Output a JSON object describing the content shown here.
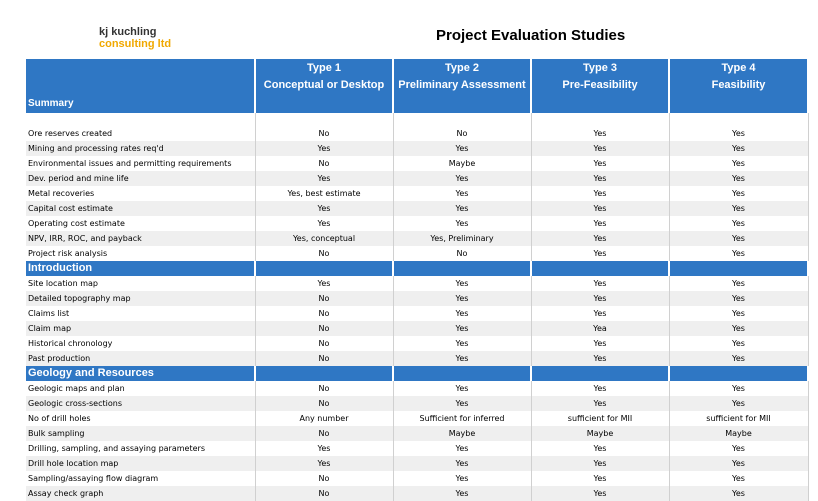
{
  "logo": {
    "line1": "kj kuchling",
    "line2": "consulting ltd"
  },
  "title": "Project Evaluation Studies",
  "header": {
    "summary_label": "Summary",
    "columns": [
      {
        "type": "Type 1",
        "name": "Conceptual or Desktop"
      },
      {
        "type": "Type 2",
        "name": "Preliminary Assessment"
      },
      {
        "type": "Type 3",
        "name": "Pre-Feasibility"
      },
      {
        "type": "Type 4",
        "name": "Feasibility"
      }
    ]
  },
  "summary_rows": [
    {
      "label": "Ore reserves created",
      "values": [
        "No",
        "No",
        "Yes",
        "Yes"
      ]
    },
    {
      "label": "Mining and processing rates req'd",
      "values": [
        "Yes",
        "Yes",
        "Yes",
        "Yes"
      ]
    },
    {
      "label": "Environmental issues and permitting requirements",
      "values": [
        "No",
        "Maybe",
        "Yes",
        "Yes"
      ]
    },
    {
      "label": "Dev. period and mine life",
      "values": [
        "Yes",
        "Yes",
        "Yes",
        "Yes"
      ]
    },
    {
      "label": "Metal recoveries",
      "values": [
        "Yes, best estimate",
        "Yes",
        "Yes",
        "Yes"
      ]
    },
    {
      "label": "Capital cost estimate",
      "values": [
        "Yes",
        "Yes",
        "Yes",
        "Yes"
      ]
    },
    {
      "label": "Operating cost estimate",
      "values": [
        "Yes",
        "Yes",
        "Yes",
        "Yes"
      ]
    },
    {
      "label": "NPV, IRR, ROC, and payback",
      "values": [
        "Yes, conceptual",
        "Yes, Preliminary",
        "Yes",
        "Yes"
      ]
    },
    {
      "label": "Project risk analysis",
      "values": [
        "No",
        "No",
        "Yes",
        "Yes"
      ]
    }
  ],
  "introduction": {
    "label": "Introduction",
    "rows": [
      {
        "label": "Site location map",
        "values": [
          "Yes",
          "Yes",
          "Yes",
          "Yes"
        ]
      },
      {
        "label": "Detailed topography map",
        "values": [
          "No",
          "Yes",
          "Yes",
          "Yes"
        ]
      },
      {
        "label": "Claims list",
        "values": [
          "No",
          "Yes",
          "Yes",
          "Yes"
        ]
      },
      {
        "label": "Claim map",
        "values": [
          "No",
          "Yes",
          "Yea",
          "Yes"
        ]
      },
      {
        "label": "Historical chronology",
        "values": [
          "No",
          "Yes",
          "Yes",
          "Yes"
        ]
      },
      {
        "label": "Past production",
        "values": [
          "No",
          "Yes",
          "Yes",
          "Yes"
        ]
      }
    ]
  },
  "geology": {
    "label": "Geology and Resources",
    "rows": [
      {
        "label": "Geologic maps and plan",
        "values": [
          "No",
          "Yes",
          "Yes",
          "Yes"
        ]
      },
      {
        "label": "Geologic cross-sections",
        "values": [
          "No",
          "Yes",
          "Yes",
          "Yes"
        ]
      },
      {
        "label": "No of drill holes",
        "values": [
          "Any number",
          "Sufficient for inferred",
          "sufficient for MII",
          "sufficient for MII"
        ]
      },
      {
        "label": "Bulk sampling",
        "values": [
          "No",
          "Maybe",
          "Maybe",
          "Maybe"
        ]
      },
      {
        "label": "Drilling, sampling, and assaying parameters",
        "values": [
          "Yes",
          "Yes",
          "Yes",
          "Yes"
        ]
      },
      {
        "label": "Drill hole location map",
        "values": [
          "Yes",
          "Yes",
          "Yes",
          "Yes"
        ]
      },
      {
        "label": "Sampling/assaying flow diagram",
        "values": [
          "No",
          "Yes",
          "Yes",
          "Yes"
        ]
      },
      {
        "label": "Assay check graph",
        "values": [
          "No",
          "Yes",
          "Yes",
          "Yes"
        ]
      }
    ]
  }
}
